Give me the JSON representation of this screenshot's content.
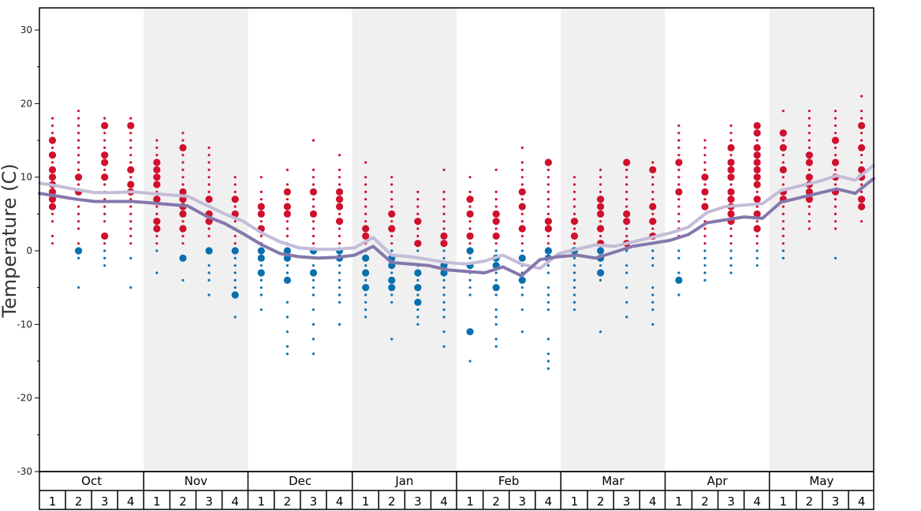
{
  "chart_data": {
    "type": "scatter",
    "title": "",
    "ylabel": "Temperature (C)",
    "ylim": [
      -30,
      33
    ],
    "yticks": [
      -30,
      -20,
      -10,
      0,
      10,
      20,
      30
    ],
    "months": [
      "Oct",
      "Nov",
      "Dec",
      "Jan",
      "Feb",
      "Mar",
      "Apr",
      "May"
    ],
    "week_labels": [
      "1",
      "2",
      "3",
      "4"
    ],
    "colors": {
      "warm": "#d0102c",
      "cold": "#0a6fad",
      "max_line": "#c4bcd8",
      "min_line": "#8577ac",
      "shade": "#f0f0f0",
      "frame": "#000000"
    },
    "series": [
      {
        "name": "",
        "values": [
          9.2,
          8.8,
          8.3,
          7.9,
          7.9,
          8.0,
          7.8,
          7.6,
          7.4,
          6.2,
          5.0,
          4.0,
          2.4,
          1.2,
          0.4,
          0.2,
          0.2,
          0.4,
          1.8,
          -0.6,
          -0.8,
          -1.2,
          -1.6,
          -1.8,
          -1.4,
          -0.6,
          -1.8,
          -2.4,
          -0.4,
          0.2,
          0.8,
          0.6,
          1.2,
          1.8,
          2.4,
          3.2,
          5.2,
          6.0,
          6.2,
          6.4,
          8.2,
          8.8,
          9.4,
          10.2,
          9.6,
          11.6
        ]
      },
      {
        "name": "",
        "values": [
          7.8,
          7.4,
          7.0,
          6.7,
          6.7,
          6.7,
          6.5,
          6.3,
          6.1,
          4.7,
          3.7,
          2.3,
          0.8,
          -0.4,
          -0.8,
          -1.0,
          -0.9,
          -0.6,
          0.6,
          -1.6,
          -1.8,
          -2.0,
          -2.6,
          -2.8,
          -3.0,
          -2.2,
          -3.4,
          -1.2,
          -0.8,
          -0.6,
          -1.0,
          -0.2,
          0.6,
          1.0,
          1.4,
          2.2,
          3.8,
          4.2,
          4.6,
          4.4,
          6.6,
          7.2,
          7.8,
          8.4,
          7.8,
          9.8
        ]
      }
    ],
    "dots": [
      {
        "x": 1,
        "t": [
          18,
          17,
          16,
          15,
          14,
          13,
          12,
          11,
          10,
          9,
          8,
          7,
          6,
          5,
          4,
          2,
          1
        ],
        "big": [
          15,
          13,
          11,
          10,
          9,
          8,
          7,
          6
        ]
      },
      {
        "x": 2,
        "t": [
          19,
          18,
          17,
          16,
          15,
          14,
          13,
          12,
          11,
          10,
          9,
          8,
          7,
          6,
          5,
          4,
          3,
          1,
          0,
          -1,
          -5
        ],
        "big": [
          10,
          8,
          0
        ]
      },
      {
        "x": 3,
        "t": [
          18,
          17,
          16,
          15,
          14,
          13,
          12,
          11,
          10,
          9,
          8,
          7,
          6,
          5,
          4,
          2,
          1,
          0,
          -1,
          -2
        ],
        "big": [
          17,
          13,
          12,
          10,
          2
        ]
      },
      {
        "x": 4,
        "t": [
          18,
          17,
          16,
          15,
          14,
          13,
          12,
          11,
          10,
          9,
          8,
          7,
          6,
          5,
          4,
          3,
          2,
          1,
          -1,
          -5
        ],
        "big": [
          17,
          11,
          9,
          8
        ]
      },
      {
        "x": 5,
        "t": [
          15,
          14,
          13,
          12,
          11,
          10,
          9,
          8,
          7,
          6,
          5,
          4,
          3,
          2,
          1,
          0,
          -3
        ],
        "big": [
          12,
          11,
          10,
          9,
          7,
          4,
          3
        ]
      },
      {
        "x": 6,
        "t": [
          16,
          15,
          14,
          13,
          12,
          11,
          10,
          9,
          8,
          7,
          6,
          5,
          4,
          3,
          2,
          1,
          -1,
          -4
        ],
        "big": [
          14,
          8,
          7,
          6,
          5,
          3,
          -1
        ]
      },
      {
        "x": 7,
        "t": [
          14,
          13,
          12,
          11,
          10,
          9,
          8,
          7,
          6,
          5,
          4,
          3,
          2,
          0,
          -2,
          -3,
          -4,
          -6
        ],
        "big": [
          7,
          5,
          4,
          0
        ]
      },
      {
        "x": 8,
        "t": [
          10,
          9,
          8,
          7,
          6,
          5,
          4,
          3,
          2,
          1,
          0,
          -1,
          -2,
          -3,
          -4,
          -5,
          -6,
          -9
        ],
        "big": [
          7,
          5,
          0,
          -6
        ]
      },
      {
        "x": 9,
        "t": [
          10,
          8,
          7,
          6,
          5,
          4,
          3,
          2,
          1,
          0,
          -1,
          -2,
          -3,
          -4,
          -5,
          -6,
          -8
        ],
        "big": [
          6,
          5,
          3,
          0,
          -1,
          -3
        ]
      },
      {
        "x": 10,
        "t": [
          11,
          9,
          8,
          7,
          6,
          5,
          4,
          3,
          2,
          1,
          0,
          -1,
          -2,
          -3,
          -4,
          -7,
          -9,
          -11,
          -13,
          -14
        ],
        "big": [
          8,
          6,
          5,
          0,
          -1,
          -4
        ]
      },
      {
        "x": 11,
        "t": [
          15,
          11,
          10,
          9,
          8,
          7,
          6,
          5,
          4,
          3,
          2,
          1,
          0,
          -1,
          -2,
          -3,
          -4,
          -5,
          -6,
          -8,
          -10,
          -12,
          -14
        ],
        "big": [
          8,
          5,
          0,
          -3
        ]
      },
      {
        "x": 12,
        "t": [
          13,
          11,
          10,
          9,
          8,
          7,
          6,
          5,
          4,
          3,
          2,
          1,
          0,
          -1,
          -2,
          -3,
          -4,
          -5,
          -6,
          -7,
          -10
        ],
        "big": [
          8,
          7,
          6,
          4,
          0,
          -1
        ]
      },
      {
        "x": 13,
        "t": [
          12,
          10,
          9,
          8,
          7,
          6,
          5,
          4,
          3,
          2,
          1,
          0,
          -1,
          -2,
          -3,
          -4,
          -5,
          -6,
          -7,
          -8,
          -9
        ],
        "big": [
          3,
          2,
          -1,
          -3,
          -5
        ]
      },
      {
        "x": 14,
        "t": [
          10,
          9,
          8,
          7,
          6,
          5,
          4,
          3,
          2,
          1,
          0,
          -1,
          -2,
          -3,
          -4,
          -5,
          -6,
          -7,
          -12
        ],
        "big": [
          5,
          3,
          -1,
          -2,
          -4,
          -5
        ]
      },
      {
        "x": 15,
        "t": [
          8,
          7,
          6,
          5,
          4,
          3,
          2,
          1,
          0,
          -1,
          -2,
          -3,
          -4,
          -5,
          -6,
          -7,
          -8,
          -9,
          -10
        ],
        "big": [
          4,
          1,
          -3,
          -5,
          -7
        ]
      },
      {
        "x": 16,
        "t": [
          11,
          8,
          7,
          6,
          5,
          4,
          3,
          2,
          1,
          0,
          -1,
          -2,
          -3,
          -4,
          -5,
          -6,
          -7,
          -8,
          -9,
          -11,
          -13
        ],
        "big": [
          2,
          1,
          -2,
          -3
        ]
      },
      {
        "x": 17,
        "t": [
          10,
          8,
          7,
          6,
          5,
          4,
          3,
          2,
          1,
          0,
          -1,
          -2,
          -3,
          -4,
          -5,
          -6,
          -11,
          -15
        ],
        "big": [
          7,
          5,
          2,
          0,
          -2,
          -11
        ]
      },
      {
        "x": 18,
        "t": [
          11,
          8,
          7,
          6,
          5,
          4,
          3,
          2,
          1,
          0,
          -1,
          -2,
          -3,
          -4,
          -5,
          -6,
          -8,
          -9,
          -10,
          -12,
          -13
        ],
        "big": [
          5,
          4,
          2,
          -1,
          -2,
          -5
        ]
      },
      {
        "x": 19,
        "t": [
          14,
          12,
          11,
          10,
          9,
          8,
          7,
          6,
          5,
          4,
          3,
          2,
          1,
          0,
          -1,
          -2,
          -3,
          -4,
          -5,
          -6,
          -8,
          -11
        ],
        "big": [
          8,
          6,
          3,
          -1,
          -4
        ]
      },
      {
        "x": 20,
        "t": [
          12,
          11,
          10,
          9,
          8,
          7,
          6,
          5,
          4,
          3,
          2,
          1,
          0,
          -1,
          -2,
          -3,
          -5,
          -6,
          -7,
          -8,
          -12,
          -14,
          -15,
          -16
        ],
        "big": [
          12,
          4,
          3,
          0,
          -1
        ]
      },
      {
        "x": 21,
        "t": [
          10,
          9,
          8,
          7,
          6,
          5,
          4,
          3,
          2,
          1,
          0,
          -1,
          -2,
          -3,
          -4,
          -5,
          -6,
          -7,
          -8
        ],
        "big": [
          4,
          2,
          0
        ]
      },
      {
        "x": 22,
        "t": [
          11,
          10,
          9,
          8,
          7,
          6,
          5,
          4,
          3,
          2,
          1,
          0,
          -1,
          -2,
          -3,
          -4,
          -11
        ],
        "big": [
          7,
          6,
          5,
          3,
          1,
          0,
          -1,
          -3
        ]
      },
      {
        "x": 23,
        "t": [
          12,
          11,
          10,
          9,
          8,
          7,
          6,
          5,
          4,
          3,
          2,
          1,
          0,
          -2,
          -3,
          -5,
          -7,
          -9
        ],
        "big": [
          12,
          5,
          4,
          1
        ]
      },
      {
        "x": 24,
        "t": [
          12,
          11,
          10,
          9,
          8,
          7,
          6,
          5,
          4,
          3,
          2,
          1,
          0,
          -1,
          -2,
          -5,
          -6,
          -7,
          -8,
          -10
        ],
        "big": [
          11,
          6,
          4,
          2
        ]
      },
      {
        "x": 25,
        "t": [
          17,
          16,
          15,
          14,
          13,
          12,
          11,
          10,
          9,
          8,
          7,
          6,
          5,
          4,
          3,
          2,
          0,
          -1,
          -3,
          -4,
          -6
        ],
        "big": [
          12,
          8,
          -4
        ]
      },
      {
        "x": 26,
        "t": [
          15,
          14,
          13,
          12,
          11,
          10,
          9,
          8,
          7,
          6,
          5,
          4,
          3,
          2,
          1,
          0,
          -1,
          -2,
          -3,
          -4
        ],
        "big": [
          10,
          8,
          6
        ]
      },
      {
        "x": 27,
        "t": [
          17,
          16,
          15,
          14,
          13,
          12,
          11,
          10,
          9,
          8,
          7,
          6,
          5,
          4,
          3,
          2,
          1,
          0,
          -1,
          -2,
          -3
        ],
        "big": [
          14,
          12,
          11,
          10,
          8,
          7,
          6,
          5,
          4
        ]
      },
      {
        "x": 28,
        "t": [
          17,
          16,
          15,
          14,
          13,
          12,
          11,
          10,
          9,
          8,
          7,
          6,
          5,
          4,
          3,
          2,
          1,
          0,
          -1,
          -2
        ],
        "big": [
          17,
          16,
          14,
          13,
          12,
          11,
          10,
          9,
          7,
          5,
          3
        ]
      },
      {
        "x": 29,
        "t": [
          19,
          16,
          15,
          14,
          13,
          12,
          11,
          10,
          9,
          8,
          7,
          6,
          5,
          4,
          3,
          2,
          1,
          0,
          -1
        ],
        "big": [
          16,
          14,
          11,
          8,
          7
        ]
      },
      {
        "x": 30,
        "t": [
          19,
          18,
          17,
          16,
          15,
          14,
          13,
          12,
          11,
          10,
          9,
          8,
          7,
          6,
          5,
          4,
          3
        ],
        "big": [
          13,
          12,
          10,
          9,
          8,
          7
        ]
      },
      {
        "x": 31,
        "t": [
          19,
          18,
          17,
          16,
          15,
          14,
          13,
          12,
          11,
          10,
          9,
          8,
          7,
          6,
          5,
          4,
          3,
          -1
        ],
        "big": [
          15,
          12,
          10,
          8
        ]
      },
      {
        "x": 32,
        "t": [
          21,
          19,
          18,
          17,
          16,
          15,
          14,
          13,
          12,
          11,
          10,
          9,
          8,
          7,
          6,
          4
        ],
        "big": [
          17,
          14,
          11,
          10,
          7,
          6
        ]
      }
    ]
  }
}
